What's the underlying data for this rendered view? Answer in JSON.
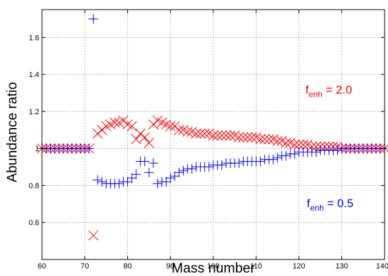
{
  "chart_data": {
    "type": "scatter",
    "xlabel": "Mass number",
    "ylabel": "Abundance ratio",
    "xlim": [
      60,
      140
    ],
    "ylim": [
      0.4,
      1.75
    ],
    "xticks": [
      60,
      70,
      80,
      90,
      100,
      110,
      120,
      130,
      140
    ],
    "yticks": [
      0.6,
      0.8,
      1,
      1.2,
      1.4,
      1.6
    ],
    "grid": true,
    "series": [
      {
        "name": "f_enh = 2.0",
        "label_main": "f",
        "label_sub": "enh",
        "label_rest": " = 2.0",
        "color": "#ff0000",
        "marker": "x",
        "x": [
          60,
          61,
          62,
          63,
          64,
          65,
          66,
          67,
          68,
          69,
          70,
          71,
          72,
          73,
          74,
          75,
          76,
          77,
          78,
          79,
          80,
          81,
          82,
          83,
          84,
          85,
          86,
          87,
          88,
          89,
          90,
          91,
          92,
          93,
          94,
          95,
          96,
          97,
          98,
          99,
          100,
          101,
          102,
          103,
          104,
          105,
          106,
          107,
          108,
          109,
          110,
          111,
          112,
          113,
          114,
          115,
          116,
          117,
          118,
          119,
          120,
          121,
          122,
          123,
          124,
          125,
          126,
          127,
          128,
          129,
          130,
          131,
          132,
          133,
          134,
          135,
          136,
          137,
          138,
          139,
          140
        ],
        "y": [
          1,
          1,
          1,
          1,
          1,
          1,
          1,
          1,
          1,
          1,
          1,
          1,
          0.53,
          1.08,
          1.1,
          1.12,
          1.13,
          1.14,
          1.14,
          1.15,
          1.13,
          1.12,
          1.05,
          1.08,
          1.06,
          1.03,
          1.13,
          1.15,
          1.14,
          1.13,
          1.12,
          1.12,
          1.1,
          1.1,
          1.09,
          1.09,
          1.08,
          1.08,
          1.08,
          1.08,
          1.07,
          1.07,
          1.07,
          1.07,
          1.07,
          1.07,
          1.06,
          1.06,
          1.06,
          1.06,
          1.06,
          1.05,
          1.05,
          1.05,
          1.05,
          1.04,
          1.04,
          1.03,
          1.03,
          1.02,
          1.02,
          1.02,
          1.02,
          1.01,
          1.01,
          1.01,
          1.01,
          1.01,
          1.01,
          1.01,
          1,
          1,
          1,
          1,
          1,
          1,
          1,
          1,
          1,
          1,
          1
        ]
      },
      {
        "name": "f_enh = 0.5",
        "label_main": "f",
        "label_sub": "enh",
        "label_rest": " = 0.5",
        "color": "#0000ff",
        "marker": "+",
        "x": [
          60,
          61,
          62,
          63,
          64,
          65,
          66,
          67,
          68,
          69,
          70,
          71,
          72,
          73,
          74,
          75,
          76,
          77,
          78,
          79,
          80,
          81,
          82,
          83,
          84,
          85,
          86,
          87,
          88,
          89,
          90,
          91,
          92,
          93,
          94,
          95,
          96,
          97,
          98,
          99,
          100,
          101,
          102,
          103,
          104,
          105,
          106,
          107,
          108,
          109,
          110,
          111,
          112,
          113,
          114,
          115,
          116,
          117,
          118,
          119,
          120,
          121,
          122,
          123,
          124,
          125,
          126,
          127,
          128,
          129,
          130,
          131,
          132,
          133,
          134,
          135,
          136,
          137,
          138,
          139,
          140
        ],
        "y": [
          1,
          1,
          1,
          1,
          1,
          1,
          1,
          1,
          1,
          1,
          1,
          1,
          1.7,
          0.83,
          0.82,
          0.81,
          0.81,
          0.81,
          0.81,
          0.82,
          0.82,
          0.84,
          0.86,
          0.93,
          0.93,
          0.87,
          0.92,
          0.81,
          0.82,
          0.82,
          0.84,
          0.85,
          0.87,
          0.88,
          0.89,
          0.89,
          0.9,
          0.9,
          0.9,
          0.9,
          0.91,
          0.91,
          0.91,
          0.92,
          0.92,
          0.92,
          0.92,
          0.93,
          0.93,
          0.93,
          0.93,
          0.93,
          0.94,
          0.94,
          0.94,
          0.95,
          0.96,
          0.96,
          0.97,
          0.97,
          0.98,
          0.98,
          0.98,
          0.98,
          0.98,
          0.99,
          0.99,
          0.99,
          0.99,
          0.99,
          1,
          1,
          1,
          1,
          1,
          1,
          1,
          1,
          1,
          1,
          1
        ]
      }
    ]
  }
}
